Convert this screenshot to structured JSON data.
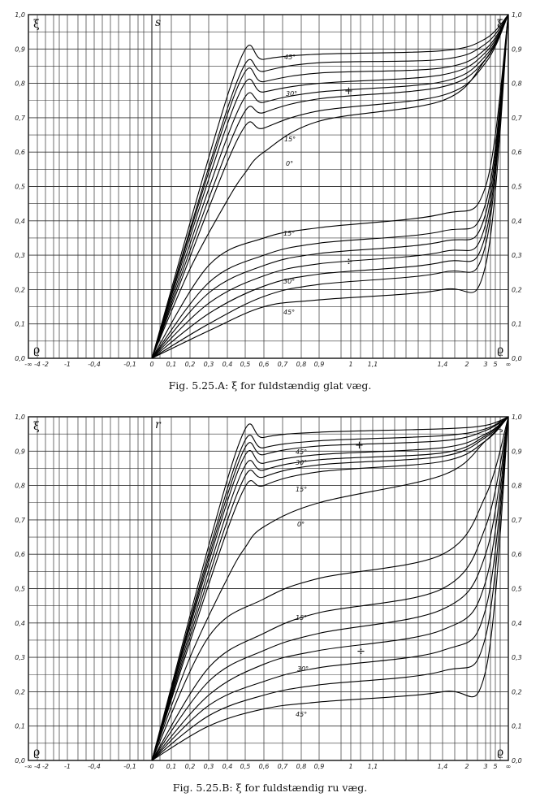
{
  "x_tick_labels": [
    "-∞",
    "-4",
    "-2",
    "-1",
    "-0,4",
    "-0,1",
    "0",
    "0,1",
    "0,2",
    "0,3",
    "0,4",
    "0,5",
    "0,6",
    "0,7",
    "0,8",
    "0,9",
    "1",
    "1,1",
    "1,4",
    "2",
    "3",
    "5",
    "∞"
  ],
  "y_tick_labels": [
    "0,0",
    "0,1",
    "0,2",
    "0,3",
    "0,4",
    "0,5",
    "0,6",
    "0,7",
    "0,8",
    "0,9",
    "1,0"
  ],
  "chart_data": [
    {
      "type": "line",
      "id": "A",
      "caption": "Fig. 5.25.A: ξ for fuldstændig glat væg.",
      "panel_letter": "s",
      "ylabel": "ξ",
      "xlabel": "ϱ",
      "ylim": [
        0,
        1
      ],
      "grid": true,
      "curve_labels": [
        "45°",
        "30°",
        "15°",
        "0°",
        "15°",
        "30°",
        "45°"
      ],
      "sign_labels": [
        "+",
        "÷"
      ],
      "series": [
        {
          "group": "+",
          "x": [
            0,
            0.45,
            0.6,
            0.9,
            1.4,
            3,
            "∞"
          ],
          "y": [
            0,
            0.84,
            0.87,
            0.885,
            0.895,
            0.93,
            1.0
          ]
        },
        {
          "group": "+",
          "x": [
            0,
            0.45,
            0.6,
            0.9,
            1.4,
            3,
            "∞"
          ],
          "y": [
            0,
            0.8,
            0.835,
            0.86,
            0.87,
            0.915,
            1.0
          ]
        },
        {
          "group": "+",
          "x": [
            0,
            0.45,
            0.6,
            0.9,
            1.4,
            3,
            "∞"
          ],
          "y": [
            0,
            0.78,
            0.805,
            0.83,
            0.845,
            0.9,
            1.0
          ]
        },
        {
          "group": "+",
          "x": [
            0,
            0.45,
            0.6,
            0.9,
            1.4,
            3,
            "∞"
          ],
          "y": [
            0,
            0.75,
            0.775,
            0.8,
            0.825,
            0.89,
            1.0
          ]
        },
        {
          "group": "+",
          "x": [
            0,
            0.45,
            0.6,
            0.9,
            1.4,
            3,
            "∞"
          ],
          "y": [
            0,
            0.71,
            0.745,
            0.775,
            0.805,
            0.88,
            1.0
          ]
        },
        {
          "group": "+",
          "x": [
            0,
            0.45,
            0.6,
            0.9,
            1.4,
            3,
            "∞"
          ],
          "y": [
            0,
            0.67,
            0.715,
            0.755,
            0.79,
            0.87,
            1.0
          ]
        },
        {
          "group": "+",
          "x": [
            0,
            0.45,
            0.6,
            0.9,
            1.4,
            3,
            "∞"
          ],
          "y": [
            0,
            0.63,
            0.67,
            0.72,
            0.765,
            0.86,
            1.0
          ]
        },
        {
          "group": "0",
          "x": [
            0,
            0.2,
            0.4,
            0.5,
            0.6,
            0.9,
            1.4,
            3,
            "∞"
          ],
          "y": [
            0,
            0.26,
            0.46,
            0.54,
            0.6,
            0.69,
            0.75,
            0.87,
            1.0
          ]
        },
        {
          "group": "÷",
          "x": [
            0,
            0.3,
            0.6,
            0.9,
            1.4,
            3,
            "∞"
          ],
          "y": [
            0,
            0.27,
            0.35,
            0.38,
            0.42,
            0.5,
            1.0
          ]
        },
        {
          "group": "÷",
          "x": [
            0,
            0.3,
            0.6,
            0.9,
            1.4,
            3,
            "∞"
          ],
          "y": [
            0,
            0.22,
            0.3,
            0.335,
            0.37,
            0.45,
            1.0
          ]
        },
        {
          "group": "÷",
          "x": [
            0,
            0.3,
            0.6,
            0.9,
            1.4,
            3,
            "∞"
          ],
          "y": [
            0,
            0.19,
            0.27,
            0.305,
            0.34,
            0.42,
            1.0
          ]
        },
        {
          "group": "÷",
          "x": [
            0,
            0.3,
            0.6,
            0.9,
            1.4,
            3,
            "∞"
          ],
          "y": [
            0,
            0.16,
            0.24,
            0.275,
            0.31,
            0.39,
            1.0
          ]
        },
        {
          "group": "÷",
          "x": [
            0,
            0.3,
            0.6,
            0.9,
            1.4,
            3,
            "∞"
          ],
          "y": [
            0,
            0.13,
            0.21,
            0.245,
            0.28,
            0.36,
            1.0
          ]
        },
        {
          "group": "÷",
          "x": [
            0,
            0.3,
            0.6,
            0.9,
            1.4,
            3,
            "∞"
          ],
          "y": [
            0,
            0.1,
            0.18,
            0.215,
            0.25,
            0.33,
            1.0
          ]
        },
        {
          "group": "÷",
          "x": [
            0,
            0.3,
            0.6,
            0.9,
            1.4,
            3,
            "∞"
          ],
          "y": [
            0,
            0.08,
            0.15,
            0.17,
            0.2,
            0.27,
            1.0
          ]
        }
      ]
    },
    {
      "type": "line",
      "id": "B",
      "caption": "Fig. 5.25.B: ξ for fuldstændig ru væg.",
      "panel_letter": "r",
      "ylabel": "ξ",
      "xlabel": "ϱ",
      "ylim": [
        0,
        1
      ],
      "grid": true,
      "curve_labels": [
        "45°",
        "30°",
        "15°",
        "0°",
        "15°",
        "30°",
        "45°"
      ],
      "sign_labels": [
        "+",
        "÷"
      ],
      "series": [
        {
          "group": "+",
          "x": [
            0,
            0.45,
            0.6,
            0.9,
            1.4,
            3,
            "∞"
          ],
          "y": [
            0,
            0.9,
            0.94,
            0.955,
            0.965,
            0.975,
            1.0
          ]
        },
        {
          "group": "+",
          "x": [
            0,
            0.45,
            0.6,
            0.9,
            1.4,
            3,
            "∞"
          ],
          "y": [
            0,
            0.87,
            0.91,
            0.93,
            0.945,
            0.965,
            1.0
          ]
        },
        {
          "group": "+",
          "x": [
            0,
            0.45,
            0.6,
            0.9,
            1.4,
            3,
            "∞"
          ],
          "y": [
            0,
            0.85,
            0.89,
            0.915,
            0.93,
            0.96,
            1.0
          ]
        },
        {
          "group": "+",
          "x": [
            0,
            0.45,
            0.6,
            0.9,
            1.4,
            3,
            "∞"
          ],
          "y": [
            0,
            0.83,
            0.865,
            0.89,
            0.91,
            0.95,
            1.0
          ]
        },
        {
          "group": "+",
          "x": [
            0,
            0.45,
            0.6,
            0.9,
            1.4,
            3,
            "∞"
          ],
          "y": [
            0,
            0.8,
            0.845,
            0.875,
            0.895,
            0.945,
            1.0
          ]
        },
        {
          "group": "+",
          "x": [
            0,
            0.45,
            0.6,
            0.9,
            1.4,
            3,
            "∞"
          ],
          "y": [
            0,
            0.77,
            0.825,
            0.86,
            0.885,
            0.94,
            1.0
          ]
        },
        {
          "group": "+",
          "x": [
            0,
            0.45,
            0.6,
            0.9,
            1.4,
            3,
            "∞"
          ],
          "y": [
            0,
            0.74,
            0.8,
            0.84,
            0.87,
            0.93,
            1.0
          ]
        },
        {
          "group": "0",
          "x": [
            0,
            0.2,
            0.4,
            0.5,
            0.6,
            0.9,
            1.4,
            3,
            "∞"
          ],
          "y": [
            0,
            0.3,
            0.53,
            0.62,
            0.68,
            0.75,
            0.83,
            0.93,
            1.0
          ]
        },
        {
          "group": "÷",
          "x": [
            0,
            0.3,
            0.6,
            0.9,
            1.4,
            3,
            "∞"
          ],
          "y": [
            0,
            0.36,
            0.47,
            0.53,
            0.6,
            0.77,
            1.0
          ]
        },
        {
          "group": "÷",
          "x": [
            0,
            0.3,
            0.6,
            0.9,
            1.4,
            3,
            "∞"
          ],
          "y": [
            0,
            0.27,
            0.37,
            0.43,
            0.5,
            0.68,
            1.0
          ]
        },
        {
          "group": "÷",
          "x": [
            0,
            0.3,
            0.6,
            0.9,
            1.4,
            3,
            "∞"
          ],
          "y": [
            0,
            0.23,
            0.32,
            0.37,
            0.44,
            0.6,
            1.0
          ]
        },
        {
          "group": "÷",
          "x": [
            0,
            0.3,
            0.6,
            0.9,
            1.4,
            3,
            "∞"
          ],
          "y": [
            0,
            0.19,
            0.28,
            0.32,
            0.38,
            0.52,
            1.0
          ]
        },
        {
          "group": "÷",
          "x": [
            0,
            0.3,
            0.6,
            0.9,
            1.4,
            3,
            "∞"
          ],
          "y": [
            0,
            0.16,
            0.23,
            0.27,
            0.32,
            0.44,
            1.0
          ]
        },
        {
          "group": "÷",
          "x": [
            0,
            0.3,
            0.6,
            0.9,
            1.4,
            3,
            "∞"
          ],
          "y": [
            0,
            0.13,
            0.19,
            0.22,
            0.26,
            0.36,
            1.0
          ]
        },
        {
          "group": "÷",
          "x": [
            0,
            0.3,
            0.6,
            0.9,
            1.4,
            3,
            "∞"
          ],
          "y": [
            0,
            0.1,
            0.15,
            0.17,
            0.2,
            0.26,
            1.0
          ]
        }
      ]
    }
  ]
}
